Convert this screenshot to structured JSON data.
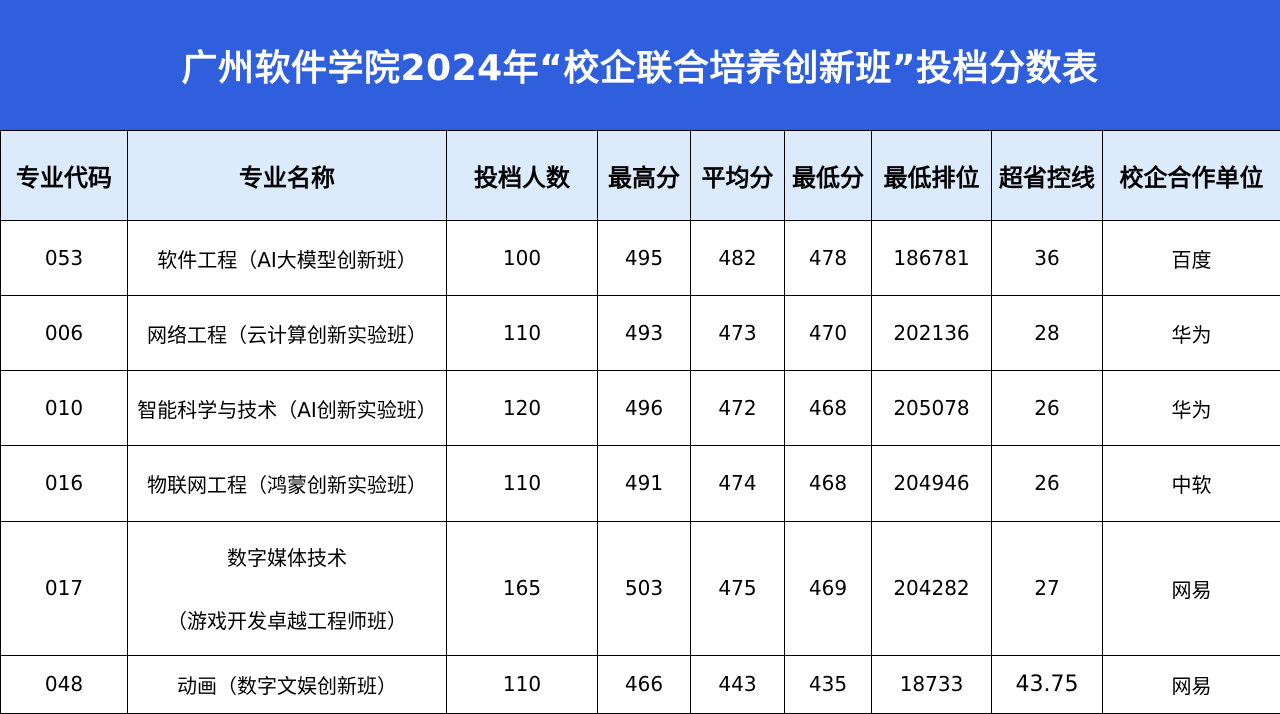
{
  "title": "广州软件学院2024年“校企联合培养创新班”投档分数表",
  "headers": [
    "专业代码",
    "专业名称",
    "投档人数",
    "最高分",
    "平均分",
    "最低分",
    "最低排位",
    "超省控线",
    "校企合作单位"
  ],
  "rows": [
    {
      "code": "053",
      "name": "软件工程（AI大模型创新班）",
      "count": "100",
      "max": "495",
      "avg": "482",
      "min": "478",
      "rank": "186781",
      "over": "36",
      "partner": "百度"
    },
    {
      "code": "006",
      "name": "网络工程（云计算创新实验班）",
      "count": "110",
      "max": "493",
      "avg": "473",
      "min": "470",
      "rank": "202136",
      "over": "28",
      "partner": "华为"
    },
    {
      "code": "010",
      "name": "智能科学与技术（AI创新实验班）",
      "count": "120",
      "max": "496",
      "avg": "472",
      "min": "468",
      "rank": "205078",
      "over": "26",
      "partner": "华为"
    },
    {
      "code": "016",
      "name": "物联网工程（鸿蒙创新实验班）",
      "count": "110",
      "max": "491",
      "avg": "474",
      "min": "468",
      "rank": "204946",
      "over": "26",
      "partner": "中软"
    },
    {
      "code": "017",
      "name_line1": "数字媒体技术",
      "name_line2": "（游戏开发卓越工程师班）",
      "count": "165",
      "max": "503",
      "avg": "475",
      "min": "469",
      "rank": "204282",
      "over": "27",
      "partner": "网易"
    },
    {
      "code": "048",
      "name": "动画（数字文娱创新班）",
      "count": "110",
      "max": "466",
      "avg": "443",
      "min": "435",
      "rank": "18733",
      "over": "43.75",
      "partner": "网易"
    }
  ],
  "colors": {
    "title_bg": "#2f5fdc",
    "header_bg": "#dcebfb",
    "border": "#000000"
  }
}
